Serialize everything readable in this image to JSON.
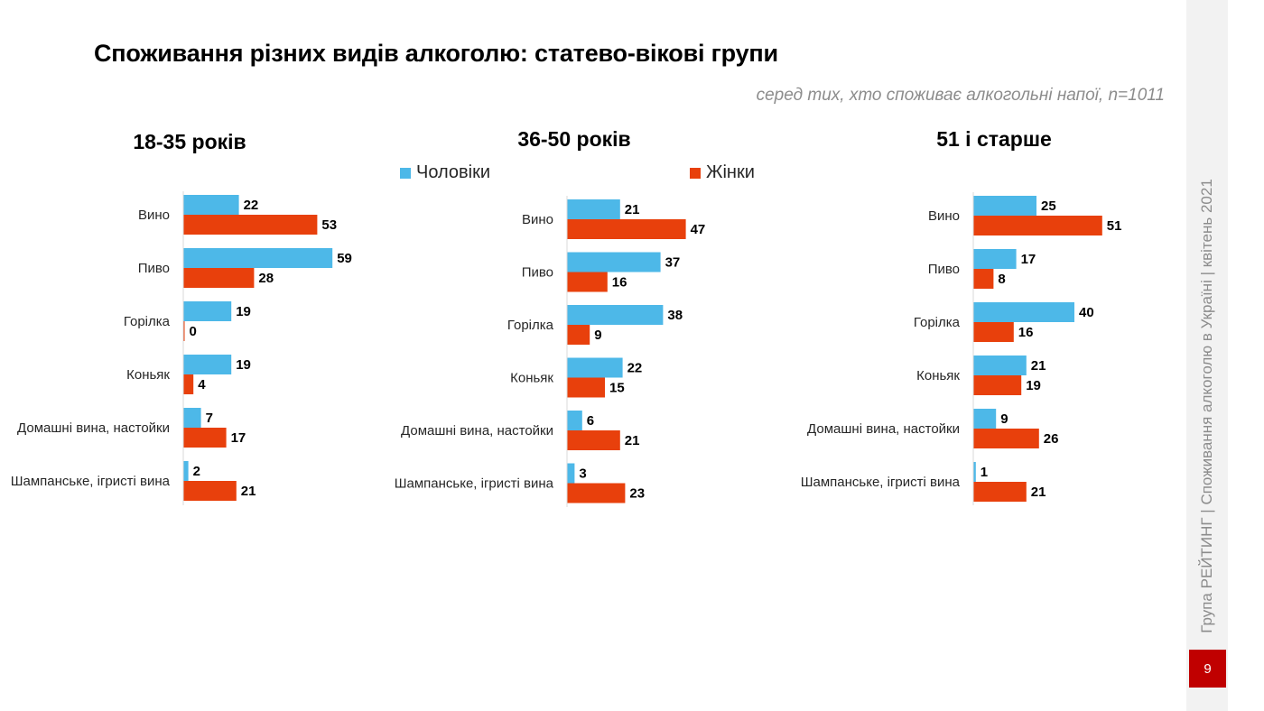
{
  "title": "Споживання різних видів алкоголю: статево-вікові групи",
  "subtitle": "серед тих, хто споживає алкогольні напої, n=1011",
  "side_text": "Група РЕЙТИНГ | Споживання алкоголю в Україні | квітень 2021",
  "page_number": "9",
  "colors": {
    "men": "#4db8e8",
    "women": "#e8400c"
  },
  "legend": [
    {
      "key": "men",
      "label": "Чоловіки"
    },
    {
      "key": "women",
      "label": "Жінки"
    }
  ],
  "chart_data": [
    {
      "type": "bar",
      "orientation": "horizontal",
      "title": "18-35 років",
      "categories": [
        "Вино",
        "Пиво",
        "Горілка",
        "Коньяк",
        "Домашні вина, настойки",
        "Шампанське, ігристі вина"
      ],
      "series": [
        {
          "name": "Чоловіки",
          "values": [
            22,
            59,
            19,
            19,
            7,
            2
          ]
        },
        {
          "name": "Жінки",
          "values": [
            53,
            28,
            0,
            4,
            17,
            21
          ]
        }
      ]
    },
    {
      "type": "bar",
      "orientation": "horizontal",
      "title": "36-50 років",
      "categories": [
        "Вино",
        "Пиво",
        "Горілка",
        "Коньяк",
        "Домашні вина, настойки",
        "Шампанське, ігристі вина"
      ],
      "series": [
        {
          "name": "Чоловіки",
          "values": [
            21,
            37,
            38,
            22,
            6,
            3
          ]
        },
        {
          "name": "Жінки",
          "values": [
            47,
            16,
            9,
            15,
            21,
            23
          ]
        }
      ]
    },
    {
      "type": "bar",
      "orientation": "horizontal",
      "title": "51 і старше",
      "categories": [
        "Вино",
        "Пиво",
        "Горілка",
        "Коньяк",
        "Домашні вина, настойки",
        "Шампанське, ігристі вина"
      ],
      "series": [
        {
          "name": "Чоловіки",
          "values": [
            25,
            17,
            40,
            21,
            9,
            1
          ]
        },
        {
          "name": "Жінки",
          "values": [
            51,
            8,
            16,
            19,
            26,
            21
          ]
        }
      ]
    }
  ]
}
